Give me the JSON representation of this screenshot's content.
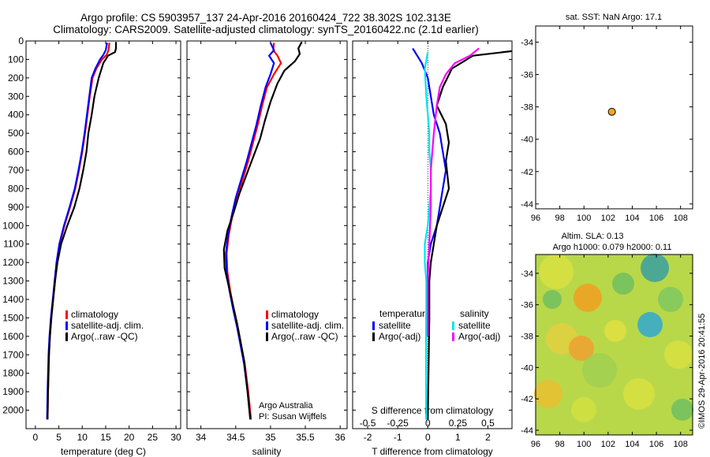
{
  "header": {
    "line1": "Argo profile: CS 5903957_137 24-Apr-2016 20160424_722 38.302S 102.313E",
    "line2": "Climatology: CARS2009. Satellite-adjusted climatology: synTS_20160422.nc (2.1d earlier)"
  },
  "colors": {
    "climatology": "#ff0000",
    "satellite": "#0000ff",
    "argo": "#000000",
    "satellite_s": "#00e5ee",
    "argo_s": "#ff00ff",
    "marker": "#f5a623"
  },
  "chart_data": [
    {
      "type": "line",
      "id": "temperature",
      "xlabel": "temperature (deg C)",
      "ylabel": "",
      "xlim": [
        -2,
        31
      ],
      "ylim": [
        2100,
        0
      ],
      "xticks": [
        0,
        5,
        10,
        15,
        20,
        25,
        30
      ],
      "yticks": [
        0,
        100,
        200,
        300,
        400,
        500,
        600,
        700,
        800,
        900,
        1000,
        1100,
        1200,
        1300,
        1400,
        1500,
        1600,
        1700,
        1800,
        1900,
        2000
      ],
      "legend": [
        "climatology",
        "satellite-adj. clim.",
        "Argo(..raw -QC)"
      ],
      "series": [
        {
          "name": "climatology",
          "color_key": "climatology",
          "x": [
            15.8,
            15.6,
            15.2,
            14.2,
            13.0,
            12.2,
            11.6,
            11.1,
            10.6,
            10.0,
            9.3,
            8.5,
            7.4,
            6.2,
            5.2,
            4.6,
            4.2,
            3.8,
            3.4,
            3.1,
            2.9,
            2.7,
            2.6
          ],
          "y": [
            10,
            50,
            75,
            100,
            150,
            200,
            300,
            400,
            500,
            600,
            700,
            800,
            900,
            1000,
            1100,
            1200,
            1300,
            1400,
            1500,
            1600,
            1700,
            1900,
            2050
          ]
        },
        {
          "name": "satellite-adj. clim.",
          "color_key": "satellite",
          "x": [
            15.3,
            15.0,
            14.5,
            13.8,
            12.8,
            12.0,
            11.5,
            11.0,
            10.5,
            9.9,
            9.2,
            8.4,
            7.3,
            6.1,
            5.1,
            4.5,
            4.1,
            3.7,
            3.3,
            3.0,
            2.8,
            2.6,
            2.5
          ],
          "y": [
            10,
            50,
            75,
            100,
            150,
            200,
            300,
            400,
            500,
            600,
            700,
            800,
            900,
            1000,
            1100,
            1200,
            1300,
            1400,
            1500,
            1600,
            1700,
            1900,
            2050
          ]
        },
        {
          "name": "Argo(..raw -QC)",
          "color_key": "argo",
          "x": [
            17.2,
            17.2,
            17.0,
            15.5,
            14.5,
            13.5,
            12.6,
            12.0,
            11.3,
            10.9,
            10.2,
            9.4,
            8.3,
            6.8,
            5.5,
            4.7,
            4.2,
            3.8,
            3.4,
            3.1,
            2.9,
            2.7,
            2.6
          ],
          "y": [
            5,
            40,
            60,
            80,
            120,
            200,
            300,
            400,
            500,
            600,
            700,
            800,
            900,
            1000,
            1100,
            1200,
            1300,
            1400,
            1500,
            1600,
            1700,
            1900,
            2050
          ]
        }
      ]
    },
    {
      "type": "line",
      "id": "salinity",
      "xlabel": "salinity",
      "xlim": [
        33.8,
        36.1
      ],
      "ylim": [
        2100,
        0
      ],
      "xticks": [
        34,
        34.5,
        35,
        35.5,
        36
      ],
      "xticklabels": [
        "34",
        "34.5",
        "35",
        "35.5",
        "36"
      ],
      "legend": [
        "climatology",
        "satellite-adj. clim.",
        "Argo(..raw -QC)"
      ],
      "annotations": [
        "Argo Australia",
        "PI: Susan Wijffels"
      ],
      "series": [
        {
          "name": "climatology",
          "color_key": "climatology",
          "x": [
            35.05,
            35.04,
            35.1,
            35.15,
            35.05,
            34.95,
            34.88,
            34.82,
            34.75,
            34.68,
            34.6,
            34.52,
            34.45,
            34.4,
            34.37,
            34.38,
            34.42,
            34.47,
            34.53,
            34.58,
            34.63,
            34.68,
            34.72
          ],
          "y": [
            10,
            50,
            80,
            120,
            180,
            250,
            350,
            450,
            550,
            650,
            750,
            850,
            950,
            1050,
            1150,
            1250,
            1350,
            1450,
            1550,
            1650,
            1750,
            1900,
            2050
          ]
        },
        {
          "name": "satellite-adj. clim.",
          "color_key": "satellite",
          "x": [
            35.0,
            35.05,
            34.98,
            35.05,
            35.0,
            34.93,
            34.86,
            34.8,
            34.73,
            34.66,
            34.58,
            34.5,
            34.44,
            34.39,
            34.36,
            34.37,
            34.41,
            34.46,
            34.52,
            34.57,
            34.62,
            34.67,
            34.71
          ],
          "y": [
            10,
            50,
            80,
            120,
            180,
            250,
            350,
            450,
            550,
            650,
            750,
            850,
            950,
            1050,
            1150,
            1250,
            1350,
            1450,
            1550,
            1650,
            1750,
            1900,
            2050
          ]
        },
        {
          "name": "Argo(..raw -QC)",
          "color_key": "argo",
          "x": [
            35.45,
            35.4,
            35.42,
            35.35,
            35.2,
            35.1,
            35.0,
            34.92,
            34.85,
            34.75,
            34.65,
            34.55,
            34.47,
            34.38,
            34.33,
            34.34,
            34.4,
            34.46,
            34.52,
            34.57,
            34.62,
            34.67,
            34.71
          ],
          "y": [
            5,
            40,
            70,
            110,
            160,
            230,
            330,
            430,
            530,
            630,
            730,
            830,
            930,
            1030,
            1130,
            1230,
            1330,
            1430,
            1530,
            1630,
            1730,
            1900,
            2050
          ]
        }
      ]
    },
    {
      "type": "line",
      "id": "difference",
      "xlabel": "T difference from climatology",
      "xlabel_top": "S difference from climatology",
      "xlim": [
        -2.5,
        2.8
      ],
      "ylim": [
        2100,
        0
      ],
      "xticks": [
        -2,
        -1,
        0,
        1,
        2
      ],
      "xticks_s": [
        -0.5,
        -0.25,
        0,
        0.25,
        0.5
      ],
      "legend_titles": [
        "temperature",
        "salinity"
      ],
      "legend": [
        "satellite",
        "Argo(-adj)",
        "satellite",
        "Argo(-adj)"
      ],
      "series": [
        {
          "name": "satellite",
          "color_key": "satellite",
          "x": [
            -0.5,
            -0.2,
            0.0,
            0.1,
            0.2,
            0.4,
            0.5,
            0.6,
            0.5,
            0.4,
            0.3,
            0.1,
            0.0,
            0.0,
            -0.05,
            -0.05,
            -0.05
          ],
          "y": [
            40,
            120,
            200,
            300,
            400,
            500,
            600,
            700,
            800,
            900,
            1000,
            1100,
            1200,
            1300,
            1500,
            1800,
            2050
          ]
        },
        {
          "name": "Argo(-adj)",
          "color_key": "argo",
          "x": [
            2.8,
            1.5,
            0.8,
            0.5,
            0.3,
            0.6,
            0.7,
            0.6,
            0.7,
            0.5,
            0.3,
            0.2,
            0.1,
            0.05,
            0.05,
            0.0
          ],
          "y": [
            55,
            80,
            150,
            250,
            350,
            450,
            550,
            650,
            800,
            900,
            1000,
            1100,
            1200,
            1300,
            1500,
            2050
          ]
        },
        {
          "name": "satellite (S)",
          "color_key": "satellite_s",
          "x": [
            0.0,
            -0.1,
            -0.05,
            0.0,
            0.05,
            0.05,
            0.1,
            0.1,
            0.05,
            0.0,
            -0.1,
            -0.1,
            -0.05,
            -0.05,
            -0.05
          ],
          "y": [
            60,
            150,
            300,
            400,
            500,
            600,
            700,
            800,
            900,
            1000,
            1100,
            1200,
            1300,
            1500,
            2050
          ]
        },
        {
          "name": "Argo(-adj) (S)",
          "color_key": "argo_s",
          "x": [
            1.7,
            1.4,
            0.9,
            0.6,
            0.4,
            0.3,
            0.2,
            0.1,
            0.1,
            0.05,
            0.0,
            0.0
          ],
          "y": [
            40,
            80,
            120,
            180,
            250,
            350,
            500,
            700,
            900,
            1100,
            1300,
            1600
          ]
        }
      ]
    },
    {
      "type": "scatter",
      "id": "location",
      "title": "sat. SST: NaN Argo: 17.1",
      "xlim": [
        96,
        109
      ],
      "ylim": [
        -44.3,
        -33
      ],
      "xticks": [
        96,
        98,
        100,
        102,
        104,
        106,
        108
      ],
      "yticks": [
        -34,
        -36,
        -38,
        -40,
        -42,
        -44
      ],
      "points": [
        {
          "x": 102.313,
          "y": -38.302
        }
      ]
    },
    {
      "type": "heatmap",
      "id": "sla",
      "title_line1": "Altim. SLA: 0.13",
      "title_line2": "Argo h1000: 0.079 h2000: 0.11",
      "xlim": [
        96,
        109
      ],
      "ylim": [
        -44.3,
        -32.8
      ],
      "xticks": [
        96,
        98,
        100,
        102,
        104,
        106,
        108
      ],
      "yticks": [
        -34,
        -36,
        -38,
        -40,
        -42,
        -44
      ],
      "credit": "©IMOS 29-Apr-2016 20:41:55"
    }
  ]
}
